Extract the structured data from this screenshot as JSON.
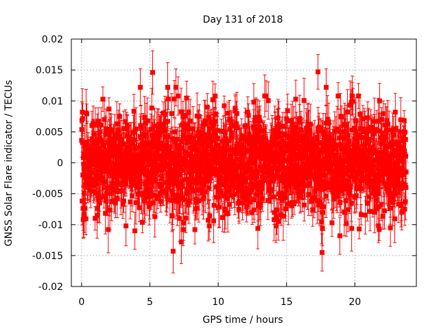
{
  "chart_data": {
    "type": "scatter",
    "title": "Day 131 of 2018",
    "xlabel": "GPS time / hours",
    "ylabel": "GNSS Solar Flare indicator / TECUs",
    "xlim": [
      -0.75,
      24.5
    ],
    "ylim": [
      -0.02,
      0.02
    ],
    "xticks": [
      0,
      5,
      10,
      15,
      20
    ],
    "xtick_labels": [
      "0",
      "5",
      "10",
      "15",
      "20"
    ],
    "yticks": [
      -0.02,
      -0.015,
      -0.01,
      -0.005,
      0,
      0.005,
      0.01,
      0.015,
      0.02
    ],
    "ytick_labels": [
      "-0.02",
      "-0.015",
      "-0.01",
      "-0.005",
      "0",
      "0.005",
      "0.01",
      "0.015",
      "0.02"
    ],
    "grid": true,
    "series": [
      {
        "name": "solar flare indicator",
        "color": "#ff0000",
        "marker": "square",
        "error_bars": true,
        "x_range": [
          0,
          23.75
        ],
        "typical_spread": 0.004,
        "typical_error": 0.003,
        "highlighted_points": [
          {
            "x": 5.2,
            "y": 0.0146,
            "err": 0.0035
          },
          {
            "x": 17.3,
            "y": 0.0147,
            "err": 0.0028
          },
          {
            "x": 4.3,
            "y": 0.0122,
            "err": 0.003
          },
          {
            "x": 6.3,
            "y": 0.0122,
            "err": 0.004
          },
          {
            "x": 6.9,
            "y": 0.0122,
            "err": 0.003
          },
          {
            "x": 17.9,
            "y": 0.0122,
            "err": 0.003
          },
          {
            "x": 9.6,
            "y": 0.0102,
            "err": 0.003
          },
          {
            "x": 6.7,
            "y": -0.0143,
            "err": 0.0035
          },
          {
            "x": 7.3,
            "y": -0.0128,
            "err": 0.0035
          },
          {
            "x": 17.6,
            "y": -0.0145,
            "err": 0.003
          },
          {
            "x": 3.9,
            "y": -0.011,
            "err": 0.003
          },
          {
            "x": 18.9,
            "y": -0.0118,
            "err": 0.003
          },
          {
            "x": 22.6,
            "y": -0.0105,
            "err": 0.003
          },
          {
            "x": 14.4,
            "y": -0.0095,
            "err": 0.003
          },
          {
            "x": 0.2,
            "y": -0.0083,
            "err": 0.003
          },
          {
            "x": 10.7,
            "y": -0.0082,
            "err": 0.003
          },
          {
            "x": 12.6,
            "y": 0.0098,
            "err": 0.003
          }
        ]
      }
    ]
  }
}
